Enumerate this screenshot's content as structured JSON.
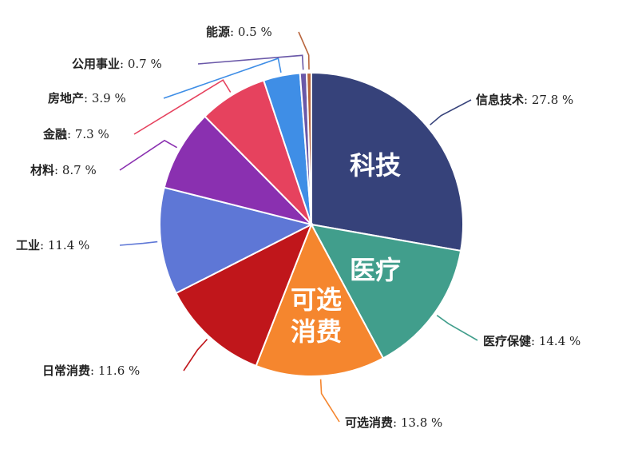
{
  "chart_data": {
    "type": "pie",
    "start": "12 o'clock",
    "direction": "clockwise",
    "unit": "%",
    "slices": [
      {
        "name": "信息技术",
        "value": 27.8,
        "color": "#36427a"
      },
      {
        "name": "医疗保健",
        "value": 14.4,
        "color": "#419e8c"
      },
      {
        "name": "可选消费",
        "value": 13.8,
        "color": "#f5862e"
      },
      {
        "name": "日常消费",
        "value": 11.6,
        "color": "#c0161b"
      },
      {
        "name": "工业",
        "value": 11.4,
        "color": "#5e77d6"
      },
      {
        "name": "材料",
        "value": 8.7,
        "color": "#8a30b0"
      },
      {
        "name": "金融",
        "value": 7.3,
        "color": "#e6425e"
      },
      {
        "name": "房地产",
        "value": 3.9,
        "color": "#3f8ee6"
      },
      {
        "name": "公用事业",
        "value": 0.7,
        "color": "#6a58a8"
      },
      {
        "name": "能源",
        "value": 0.5,
        "color": "#b8653d"
      }
    ],
    "annotations": [
      {
        "text": "科技",
        "slice": "信息技术"
      },
      {
        "text": "医疗",
        "slice": "医疗保健"
      },
      {
        "text": "可选",
        "slice": "可选消费"
      },
      {
        "text": "消费",
        "slice": "可选消费"
      }
    ]
  }
}
